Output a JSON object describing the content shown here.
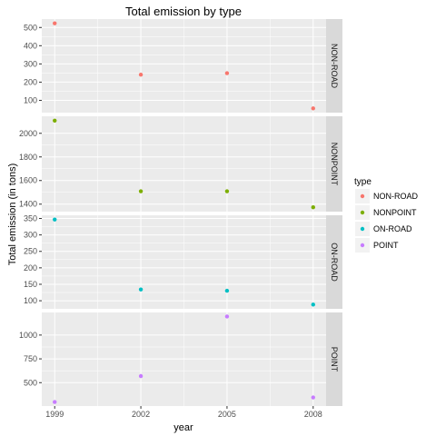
{
  "chart_data": {
    "type": "scatter",
    "title": "Total emission by type",
    "xlabel": "year",
    "ylabel": "Total emission (in tons)",
    "x": [
      1999,
      2002,
      2005,
      2008
    ],
    "x_ticks": [
      "1999",
      "2002",
      "2005",
      "2008"
    ],
    "xlim": [
      1998.55,
      2008.45
    ],
    "grid": true,
    "legend_position": "right",
    "legend_title": "type",
    "facets": [
      {
        "name": "NON-ROAD",
        "color": "#F8766D",
        "values": [
          522.9,
          240.8,
          248.9,
          55.8
        ],
        "ylim": [
          32.5,
          546.2
        ],
        "yticks": [
          100,
          200,
          300,
          400,
          500
        ],
        "ytick_labels": [
          "100",
          "200",
          "300",
          "400",
          "500"
        ]
      },
      {
        "name": "NONPOINT",
        "color": "#7CAE00",
        "values": [
          2107.6,
          1509.5,
          1509.5,
          1373.2
        ],
        "ylim": [
          1336.5,
          2144.3
        ],
        "yticks": [
          1400,
          1600,
          1800,
          2000
        ],
        "ytick_labels": [
          "1400",
          "1600",
          "1800",
          "2000"
        ]
      },
      {
        "name": "ON-ROAD",
        "color": "#00BFC4",
        "values": [
          346.8,
          134.3,
          130.4,
          88.3
        ],
        "ylim": [
          75.4,
          359.7
        ],
        "yticks": [
          100,
          150,
          200,
          250,
          300,
          350
        ],
        "ytick_labels": [
          "100",
          "150",
          "200",
          "250",
          "300",
          "350"
        ]
      },
      {
        "name": "POINT",
        "color": "#C77CFF",
        "values": [
          296.8,
          569.3,
          1195.1,
          344.9
        ],
        "ylim": [
          254.5,
          1237.4
        ],
        "yticks": [
          500,
          750,
          1000
        ],
        "ytick_labels": [
          "500",
          "750",
          "1000"
        ]
      }
    ]
  }
}
